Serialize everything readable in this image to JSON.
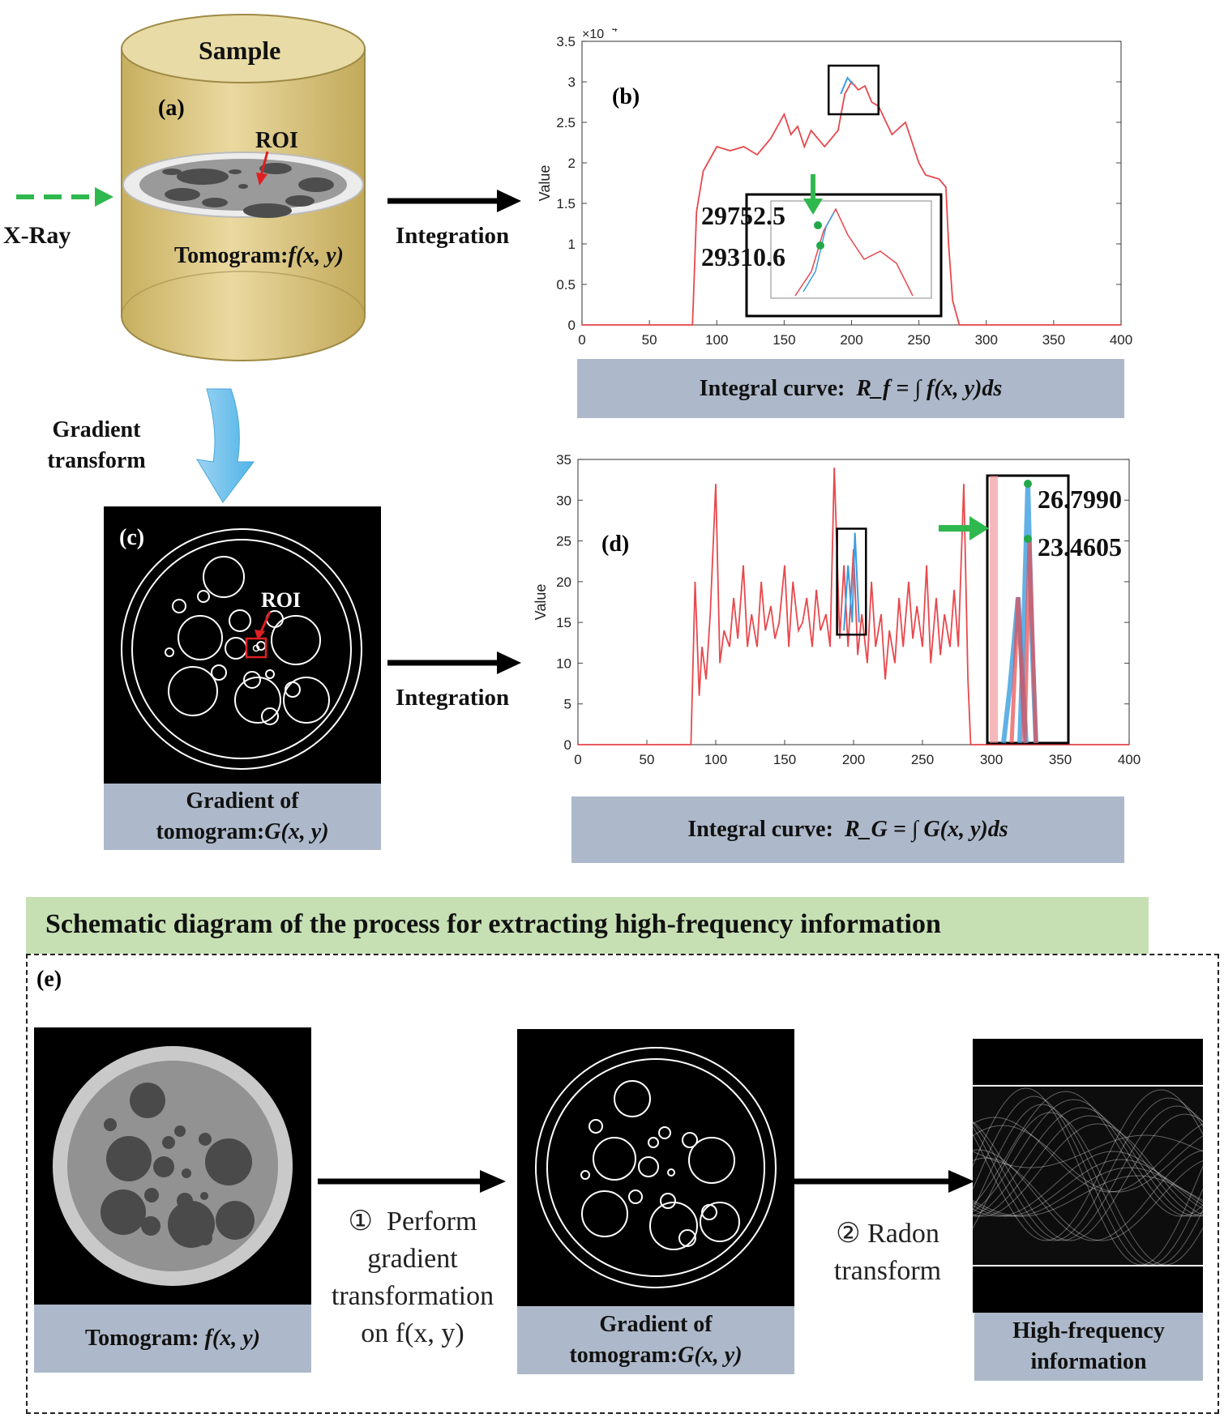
{
  "panel_a": {
    "letter": "(a)",
    "sample_label": "Sample",
    "roi_label": "ROI",
    "xray_label": "X-Ray",
    "tomogram_label": "Tomogram:",
    "tomogram_func": "f(x, y)",
    "gradient_transform_line1": "Gradient",
    "gradient_transform_line2": "transform",
    "integration_label": "Integration"
  },
  "panel_b": {
    "letter": "(b)",
    "caption_prefix": "Integral curve:",
    "caption_formula": "R_f = ∫ f(x, y)ds",
    "annotation_high": "29752.5",
    "annotation_low": "29310.6",
    "ylabel": "Value",
    "y_exponent": "×10",
    "y_exponent_power": "4"
  },
  "panel_c": {
    "letter": "(c)",
    "roi_label": "ROI",
    "caption_line1": "Gradient of",
    "caption_line2_prefix": "tomogram:",
    "caption_line2_func": "G(x, y)",
    "integration_label": "Integration"
  },
  "panel_d": {
    "letter": "(d)",
    "caption_prefix": "Integral curve:",
    "caption_formula": "R_G = ∫ G(x, y)ds",
    "annotation_high": "26.7990",
    "annotation_low": "23.4605",
    "ylabel": "Value"
  },
  "section_e": {
    "title": "Schematic diagram of the process for extracting high-frequency information",
    "letter": "(e)",
    "tomogram_caption_prefix": "Tomogram:",
    "tomogram_caption_func": "f(x, y)",
    "step1_num": "①",
    "step1_line1": "Perform",
    "step1_line2": "gradient",
    "step1_line3": "transformation",
    "step1_line4": "on f(x, y)",
    "gradient_caption_line1": "Gradient of",
    "gradient_caption_line2_prefix": "tomogram:",
    "gradient_caption_line2_func": "G(x, y)",
    "step2_num": "②",
    "step2_line1": "Radon",
    "step2_line2": "transform",
    "hf_caption_line1": "High-frequency",
    "hf_caption_line2": "information"
  },
  "colors": {
    "curve": "#e8484d",
    "inset_blue": "#3b9de0",
    "green_marker": "#22a84a",
    "arrow_green": "#2fb84d",
    "caption_bg": "#adb9ca",
    "title_bg": "#c6e0b4",
    "cylinder": "#dcc883"
  },
  "chart_data": [
    {
      "type": "line",
      "id": "b",
      "xlim": [
        0,
        400
      ],
      "ylim": [
        0,
        35000
      ],
      "x_ticks": [
        0,
        50,
        100,
        150,
        200,
        250,
        300,
        350,
        400
      ],
      "y_ticks": [
        0,
        0.5,
        1,
        1.5,
        2,
        2.5,
        3,
        3.5
      ],
      "y_multiplier": "×10^4",
      "ylabel": "Value",
      "series": [
        {
          "x": [
            0,
            82,
            85,
            90,
            100,
            110,
            120,
            130,
            140,
            150,
            155,
            160,
            165,
            170,
            180,
            190,
            195,
            200,
            205,
            210,
            215,
            220,
            230,
            240,
            250,
            255,
            265,
            270,
            272,
            275,
            280,
            400
          ],
          "values": [
            0,
            0,
            14000,
            19000,
            22000,
            21500,
            22000,
            21000,
            23000,
            26000,
            23500,
            24500,
            22000,
            24000,
            22000,
            24000,
            28500,
            30000,
            29000,
            29500,
            27500,
            27000,
            23500,
            25000,
            20000,
            18500,
            18000,
            17000,
            10000,
            3000,
            0,
            0
          ]
        }
      ],
      "annotations": [
        "29752.5",
        "29310.6"
      ]
    },
    {
      "type": "line",
      "id": "d",
      "xlim": [
        0,
        400
      ],
      "ylim": [
        0,
        35
      ],
      "x_ticks": [
        0,
        50,
        100,
        150,
        200,
        250,
        300,
        350,
        400
      ],
      "y_ticks": [
        0,
        5,
        10,
        15,
        20,
        25,
        30,
        35
      ],
      "ylabel": "Value",
      "series": [
        {
          "x": [
            0,
            82,
            85,
            88,
            90,
            93,
            96,
            100,
            103,
            106,
            110,
            113,
            116,
            120,
            123,
            126,
            130,
            133,
            136,
            140,
            143,
            146,
            150,
            153,
            156,
            160,
            163,
            166,
            170,
            173,
            176,
            180,
            183,
            186,
            190,
            193,
            196,
            200,
            203,
            206,
            210,
            213,
            216,
            220,
            223,
            226,
            230,
            233,
            236,
            240,
            243,
            246,
            250,
            253,
            256,
            260,
            263,
            266,
            270,
            273,
            276,
            280,
            283,
            285,
            400
          ],
          "values": [
            0,
            0,
            20,
            6,
            12,
            8,
            16,
            32,
            10,
            14,
            12,
            18,
            13,
            22,
            12,
            16,
            12,
            20,
            14,
            17,
            13,
            15,
            22,
            12,
            20,
            14,
            15,
            18,
            12,
            19,
            14,
            16,
            12,
            34,
            13,
            22,
            12,
            24,
            11,
            16,
            10,
            20,
            12,
            16,
            8,
            14,
            10,
            18,
            12,
            20,
            13,
            17,
            12,
            22,
            10,
            18,
            11,
            16,
            12,
            19,
            12,
            32,
            8,
            0,
            0
          ]
        }
      ],
      "annotations": [
        "26.7990",
        "23.4605"
      ]
    }
  ]
}
